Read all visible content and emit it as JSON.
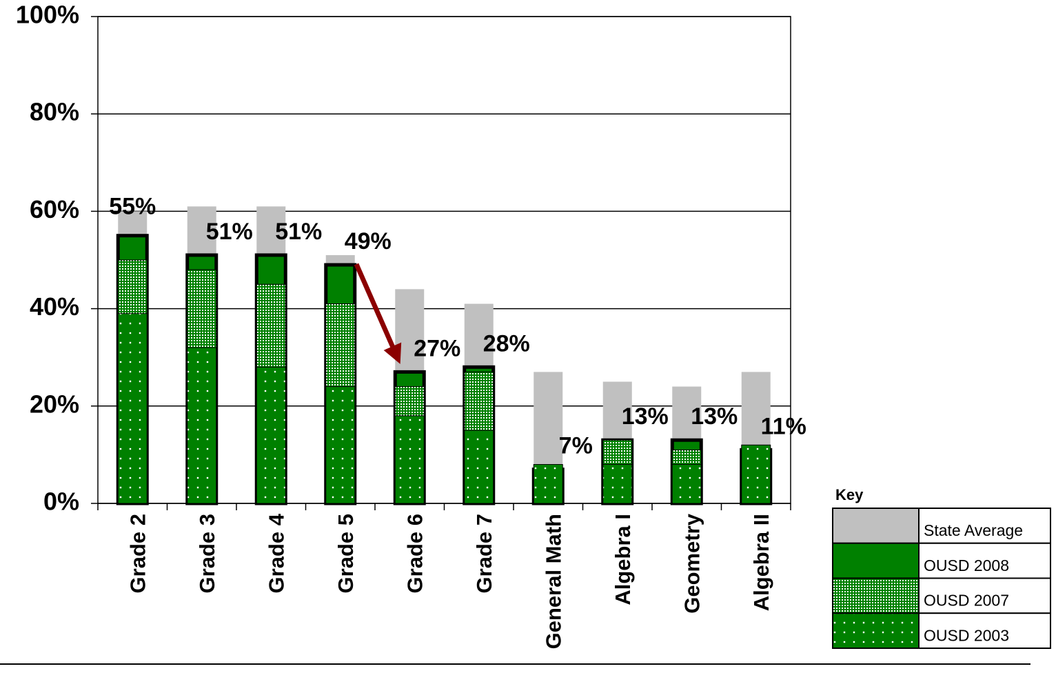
{
  "chart_data": {
    "type": "bar",
    "categories": [
      "Grade 2",
      "Grade 3",
      "Grade 4",
      "Grade 5",
      "Grade 6",
      "Grade 7",
      "General Math",
      "Algebra I",
      "Geometry",
      "Algebra II"
    ],
    "series": [
      {
        "name": "State Average",
        "color": "#c0c0c0",
        "values": [
          60,
          61,
          61,
          51,
          44,
          41,
          27,
          25,
          24,
          27
        ]
      },
      {
        "name": "OUSD 2008",
        "color": "#008000",
        "values": [
          55,
          51,
          51,
          49,
          27,
          28,
          7,
          13,
          13,
          11
        ],
        "value_labels": [
          "55%",
          "51%",
          "51%",
          "49%",
          "27%",
          "28%",
          "7%",
          "13%",
          "13%",
          "11%"
        ]
      },
      {
        "name": "OUSD 2007",
        "color": "#008000",
        "values": [
          50,
          48,
          45,
          41,
          24,
          27,
          null,
          13,
          11,
          null
        ]
      },
      {
        "name": "OUSD 2003",
        "color": "#008000",
        "values": [
          39,
          32,
          28,
          24,
          18,
          15,
          8,
          8,
          8,
          12
        ]
      }
    ],
    "ylim": [
      0,
      100
    ],
    "yticks": [
      {
        "value": 0,
        "label": "0%"
      },
      {
        "value": 20,
        "label": "20%"
      },
      {
        "value": 40,
        "label": "40%"
      },
      {
        "value": 60,
        "label": "60%"
      },
      {
        "value": 80,
        "label": "80%"
      },
      {
        "value": 100,
        "label": "100%"
      }
    ],
    "grid": true,
    "legend_title": "Key"
  }
}
